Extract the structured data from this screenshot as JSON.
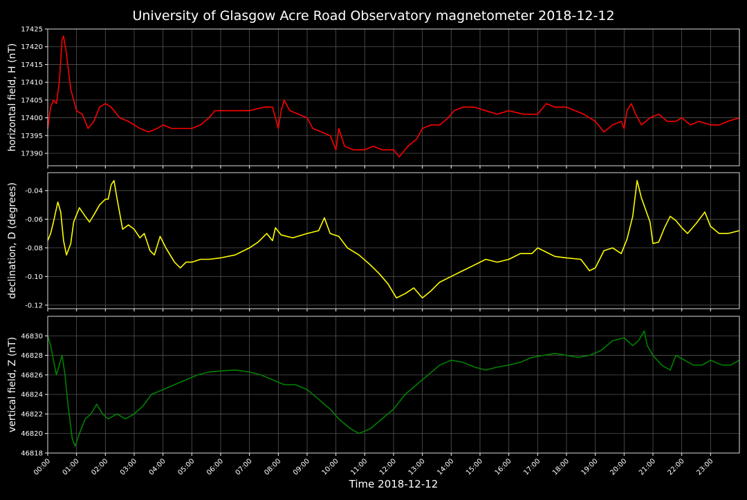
{
  "title": "University of Glasgow Acre Road Observatory magnetometer 2018-12-12",
  "xlabel": "Time 2018-12-12",
  "x_ticks": [
    "00:00",
    "01:00",
    "02:00",
    "03:00",
    "04:00",
    "05:00",
    "06:00",
    "07:00",
    "08:00",
    "09:00",
    "10:00",
    "11:00",
    "12:00",
    "13:00",
    "14:00",
    "15:00",
    "16:00",
    "17:00",
    "18:00",
    "19:00",
    "20:00",
    "21:00",
    "22:00",
    "23:00"
  ],
  "chart_data": [
    {
      "type": "line",
      "ylabel": "horizontal field, H (nT)",
      "color": "#ff0000",
      "xlim": [
        0,
        24
      ],
      "ylim": [
        17386.5,
        17425
      ],
      "y_ticks": [
        "17390",
        "17395",
        "17400",
        "17405",
        "17410",
        "17415",
        "17420",
        "17425"
      ],
      "grid": true,
      "points": [
        [
          0,
          17397
        ],
        [
          0.1,
          17403
        ],
        [
          0.2,
          17405
        ],
        [
          0.3,
          17404
        ],
        [
          0.4,
          17410
        ],
        [
          0.5,
          17422
        ],
        [
          0.55,
          17423
        ],
        [
          0.65,
          17418
        ],
        [
          0.8,
          17408
        ],
        [
          1.0,
          17402
        ],
        [
          1.2,
          17401
        ],
        [
          1.4,
          17397
        ],
        [
          1.6,
          17399
        ],
        [
          1.8,
          17403
        ],
        [
          2.0,
          17404
        ],
        [
          2.2,
          17403
        ],
        [
          2.5,
          17400
        ],
        [
          2.8,
          17399
        ],
        [
          3.0,
          17398
        ],
        [
          3.2,
          17397
        ],
        [
          3.5,
          17396
        ],
        [
          3.8,
          17397
        ],
        [
          4.0,
          17398
        ],
        [
          4.3,
          17397
        ],
        [
          4.6,
          17397
        ],
        [
          5.0,
          17397
        ],
        [
          5.3,
          17398
        ],
        [
          5.6,
          17400
        ],
        [
          5.8,
          17402
        ],
        [
          6.0,
          17402
        ],
        [
          6.5,
          17402
        ],
        [
          7.0,
          17402
        ],
        [
          7.5,
          17403
        ],
        [
          7.8,
          17403
        ],
        [
          8.0,
          17397
        ],
        [
          8.1,
          17402
        ],
        [
          8.2,
          17405
        ],
        [
          8.4,
          17402
        ],
        [
          8.7,
          17401
        ],
        [
          9.0,
          17400
        ],
        [
          9.2,
          17397
        ],
        [
          9.5,
          17396
        ],
        [
          9.8,
          17395
        ],
        [
          10.0,
          17391
        ],
        [
          10.1,
          17397
        ],
        [
          10.3,
          17392
        ],
        [
          10.6,
          17391
        ],
        [
          11.0,
          17391
        ],
        [
          11.3,
          17392
        ],
        [
          11.6,
          17391
        ],
        [
          12.0,
          17391
        ],
        [
          12.2,
          17389
        ],
        [
          12.5,
          17392
        ],
        [
          12.8,
          17394
        ],
        [
          13.0,
          17397
        ],
        [
          13.3,
          17398
        ],
        [
          13.6,
          17398
        ],
        [
          13.9,
          17400
        ],
        [
          14.1,
          17402
        ],
        [
          14.4,
          17403
        ],
        [
          14.8,
          17403
        ],
        [
          15.2,
          17402
        ],
        [
          15.6,
          17401
        ],
        [
          16.0,
          17402
        ],
        [
          16.5,
          17401
        ],
        [
          17.0,
          17401
        ],
        [
          17.3,
          17404
        ],
        [
          17.6,
          17403
        ],
        [
          18.0,
          17403
        ],
        [
          18.3,
          17402
        ],
        [
          18.6,
          17401
        ],
        [
          19.0,
          17399
        ],
        [
          19.3,
          17396
        ],
        [
          19.6,
          17398
        ],
        [
          19.9,
          17399
        ],
        [
          20.0,
          17397
        ],
        [
          20.1,
          17402
        ],
        [
          20.25,
          17404
        ],
        [
          20.4,
          17401
        ],
        [
          20.6,
          17398
        ],
        [
          20.9,
          17400
        ],
        [
          21.2,
          17401
        ],
        [
          21.5,
          17399
        ],
        [
          21.8,
          17399
        ],
        [
          22.0,
          17400
        ],
        [
          22.3,
          17398
        ],
        [
          22.6,
          17399
        ],
        [
          23.0,
          17398
        ],
        [
          23.3,
          17398
        ],
        [
          23.6,
          17399
        ],
        [
          24.0,
          17400
        ]
      ]
    },
    {
      "type": "line",
      "ylabel": "declination, D (degrees)",
      "color": "#ffff00",
      "xlim": [
        0,
        24
      ],
      "ylim": [
        -0.1225,
        -0.0275
      ],
      "y_ticks": [
        "-0.04",
        "-0.06",
        "-0.08",
        "-0.10",
        "-0.12"
      ],
      "grid": true,
      "points": [
        [
          0,
          -0.075
        ],
        [
          0.1,
          -0.07
        ],
        [
          0.2,
          -0.062
        ],
        [
          0.35,
          -0.048
        ],
        [
          0.45,
          -0.055
        ],
        [
          0.55,
          -0.075
        ],
        [
          0.65,
          -0.085
        ],
        [
          0.8,
          -0.077
        ],
        [
          0.9,
          -0.062
        ],
        [
          1.1,
          -0.052
        ],
        [
          1.3,
          -0.058
        ],
        [
          1.45,
          -0.062
        ],
        [
          1.6,
          -0.057
        ],
        [
          1.8,
          -0.05
        ],
        [
          2.0,
          -0.046
        ],
        [
          2.1,
          -0.046
        ],
        [
          2.2,
          -0.036
        ],
        [
          2.3,
          -0.033
        ],
        [
          2.4,
          -0.045
        ],
        [
          2.6,
          -0.067
        ],
        [
          2.8,
          -0.064
        ],
        [
          3.0,
          -0.067
        ],
        [
          3.2,
          -0.073
        ],
        [
          3.35,
          -0.07
        ],
        [
          3.55,
          -0.082
        ],
        [
          3.7,
          -0.085
        ],
        [
          3.9,
          -0.072
        ],
        [
          4.1,
          -0.08
        ],
        [
          4.4,
          -0.09
        ],
        [
          4.6,
          -0.094
        ],
        [
          4.8,
          -0.09
        ],
        [
          5.0,
          -0.09
        ],
        [
          5.3,
          -0.088
        ],
        [
          5.6,
          -0.088
        ],
        [
          6.0,
          -0.087
        ],
        [
          6.5,
          -0.085
        ],
        [
          7.0,
          -0.08
        ],
        [
          7.3,
          -0.076
        ],
        [
          7.6,
          -0.07
        ],
        [
          7.8,
          -0.075
        ],
        [
          7.9,
          -0.066
        ],
        [
          8.1,
          -0.071
        ],
        [
          8.5,
          -0.073
        ],
        [
          9.0,
          -0.07
        ],
        [
          9.4,
          -0.068
        ],
        [
          9.6,
          -0.059
        ],
        [
          9.8,
          -0.07
        ],
        [
          10.1,
          -0.072
        ],
        [
          10.4,
          -0.08
        ],
        [
          10.8,
          -0.085
        ],
        [
          11.2,
          -0.092
        ],
        [
          11.5,
          -0.098
        ],
        [
          11.8,
          -0.105
        ],
        [
          12.1,
          -0.115
        ],
        [
          12.4,
          -0.112
        ],
        [
          12.7,
          -0.108
        ],
        [
          13.0,
          -0.115
        ],
        [
          13.3,
          -0.11
        ],
        [
          13.6,
          -0.104
        ],
        [
          14.0,
          -0.1
        ],
        [
          14.4,
          -0.096
        ],
        [
          14.8,
          -0.092
        ],
        [
          15.2,
          -0.088
        ],
        [
          15.6,
          -0.09
        ],
        [
          16.0,
          -0.088
        ],
        [
          16.4,
          -0.084
        ],
        [
          16.8,
          -0.084
        ],
        [
          17.0,
          -0.08
        ],
        [
          17.3,
          -0.083
        ],
        [
          17.6,
          -0.086
        ],
        [
          18.0,
          -0.087
        ],
        [
          18.5,
          -0.088
        ],
        [
          18.8,
          -0.096
        ],
        [
          19.0,
          -0.094
        ],
        [
          19.3,
          -0.082
        ],
        [
          19.6,
          -0.08
        ],
        [
          19.9,
          -0.084
        ],
        [
          20.1,
          -0.074
        ],
        [
          20.3,
          -0.058
        ],
        [
          20.45,
          -0.033
        ],
        [
          20.6,
          -0.045
        ],
        [
          20.9,
          -0.062
        ],
        [
          21.0,
          -0.077
        ],
        [
          21.2,
          -0.076
        ],
        [
          21.4,
          -0.066
        ],
        [
          21.6,
          -0.058
        ],
        [
          21.8,
          -0.061
        ],
        [
          22.0,
          -0.066
        ],
        [
          22.2,
          -0.07
        ],
        [
          22.5,
          -0.063
        ],
        [
          22.8,
          -0.055
        ],
        [
          23.0,
          -0.065
        ],
        [
          23.3,
          -0.07
        ],
        [
          23.6,
          -0.07
        ],
        [
          24.0,
          -0.068
        ]
      ]
    },
    {
      "type": "line",
      "ylabel": "vertical field, Z (nT)",
      "color": "#008000",
      "xlim": [
        0,
        24
      ],
      "ylim": [
        46818,
        46832
      ],
      "y_ticks": [
        "46818",
        "46820",
        "46822",
        "46824",
        "46826",
        "46828",
        "46830"
      ],
      "grid": true,
      "points": [
        [
          0,
          46830
        ],
        [
          0.1,
          46829
        ],
        [
          0.3,
          46826
        ],
        [
          0.5,
          46828
        ],
        [
          0.6,
          46826
        ],
        [
          0.7,
          46823
        ],
        [
          0.85,
          46819.5
        ],
        [
          0.95,
          46818.7
        ],
        [
          1.1,
          46820
        ],
        [
          1.3,
          46821.5
        ],
        [
          1.5,
          46822
        ],
        [
          1.7,
          46823
        ],
        [
          1.9,
          46822
        ],
        [
          2.1,
          46821.5
        ],
        [
          2.4,
          46822
        ],
        [
          2.7,
          46821.5
        ],
        [
          3.0,
          46822
        ],
        [
          3.3,
          46822.8
        ],
        [
          3.6,
          46824
        ],
        [
          4.0,
          46824.5
        ],
        [
          4.4,
          46825
        ],
        [
          4.8,
          46825.5
        ],
        [
          5.2,
          46826
        ],
        [
          5.6,
          46826.3
        ],
        [
          6.0,
          46826.4
        ],
        [
          6.5,
          46826.5
        ],
        [
          7.0,
          46826.3
        ],
        [
          7.4,
          46826
        ],
        [
          7.8,
          46825.5
        ],
        [
          8.2,
          46825
        ],
        [
          8.6,
          46825
        ],
        [
          9.0,
          46824.5
        ],
        [
          9.4,
          46823.5
        ],
        [
          9.8,
          46822.5
        ],
        [
          10.1,
          46821.5
        ],
        [
          10.5,
          46820.5
        ],
        [
          10.8,
          46820
        ],
        [
          11.2,
          46820.5
        ],
        [
          11.6,
          46821.5
        ],
        [
          12.0,
          46822.5
        ],
        [
          12.4,
          46824
        ],
        [
          12.8,
          46825
        ],
        [
          13.2,
          46826
        ],
        [
          13.6,
          46827
        ],
        [
          14.0,
          46827.5
        ],
        [
          14.4,
          46827.3
        ],
        [
          14.8,
          46826.8
        ],
        [
          15.2,
          46826.5
        ],
        [
          15.6,
          46826.8
        ],
        [
          16.0,
          46827
        ],
        [
          16.4,
          46827.3
        ],
        [
          16.8,
          46827.8
        ],
        [
          17.2,
          46828
        ],
        [
          17.6,
          46828.2
        ],
        [
          18.0,
          46828
        ],
        [
          18.4,
          46827.8
        ],
        [
          18.8,
          46828
        ],
        [
          19.2,
          46828.5
        ],
        [
          19.6,
          46829.5
        ],
        [
          20.0,
          46829.8
        ],
        [
          20.3,
          46829
        ],
        [
          20.5,
          46829.5
        ],
        [
          20.7,
          46830.5
        ],
        [
          20.8,
          46829
        ],
        [
          21.0,
          46828
        ],
        [
          21.3,
          46827
        ],
        [
          21.6,
          46826.5
        ],
        [
          21.8,
          46828
        ],
        [
          22.1,
          46827.5
        ],
        [
          22.4,
          46827
        ],
        [
          22.7,
          46827
        ],
        [
          23.0,
          46827.5
        ],
        [
          23.4,
          46827
        ],
        [
          23.7,
          46827
        ],
        [
          24.0,
          46827.5
        ]
      ]
    }
  ]
}
